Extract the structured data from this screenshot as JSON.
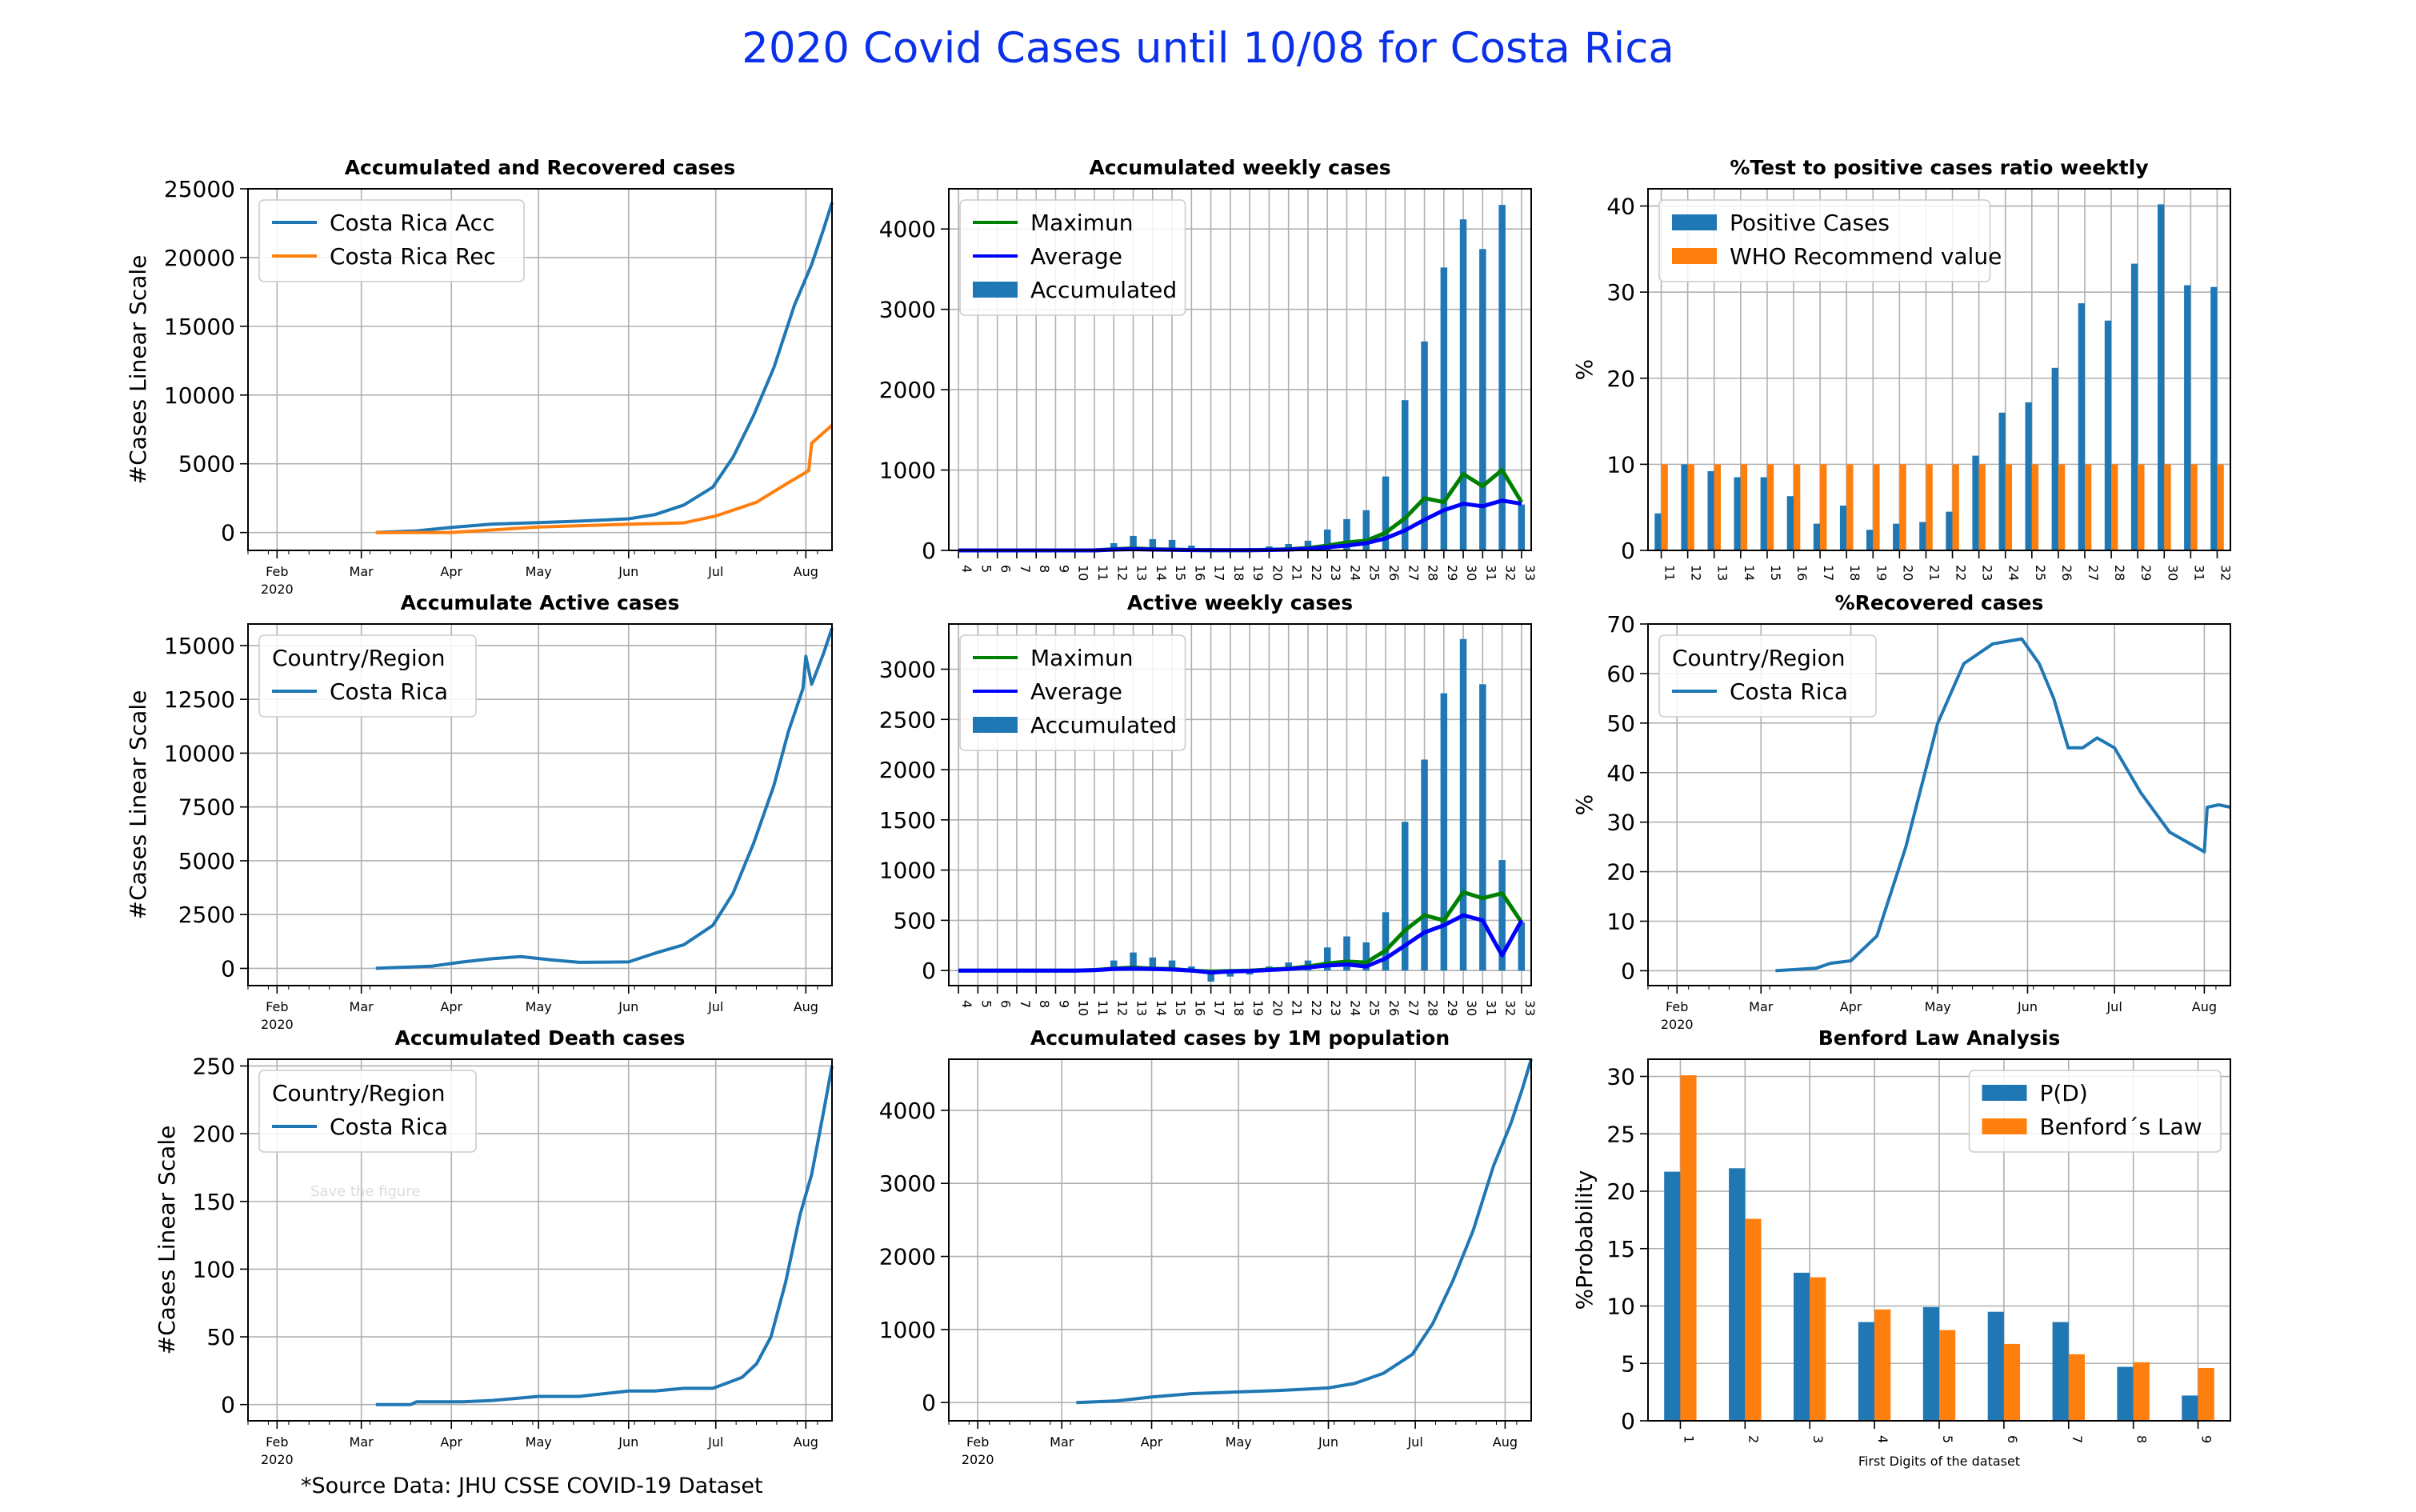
{
  "figure": {
    "title": "2020 Covid  Cases until 10/08 for Costa Rica",
    "source_note": "*Source Data: JHU CSSE COVID-19 Dataset",
    "ghost_text": "Save the figure",
    "colors": {
      "blue": "#1f77b4",
      "orange": "#ff7f0e",
      "green": "#008000",
      "navy": "#0000ff",
      "title": "#0b31e8"
    }
  },
  "chart_data": [
    {
      "id": "acc_rec",
      "type": "line",
      "title": "Accumulated and Recovered cases",
      "ylabel": "#Cases Linear Scale",
      "xlabel": "",
      "xlim": [
        "2020-01-22",
        "2020-08-10"
      ],
      "ylim": [
        -1300,
        25000
      ],
      "yticks": [
        0,
        5000,
        10000,
        15000,
        20000,
        25000
      ],
      "xticks": [
        "Feb\n2020",
        "Mar",
        "Apr",
        "May",
        "Jun",
        "Jul",
        "Aug"
      ],
      "grid": true,
      "legend": "top-left",
      "series": [
        {
          "name": "Costa Rica Acc",
          "color": "#1f77b4",
          "x": [
            "2020-03-06",
            "2020-03-20",
            "2020-04-01",
            "2020-04-15",
            "2020-05-01",
            "2020-05-15",
            "2020-06-01",
            "2020-06-10",
            "2020-06-20",
            "2020-06-30",
            "2020-07-07",
            "2020-07-14",
            "2020-07-21",
            "2020-07-28",
            "2020-08-03",
            "2020-08-07",
            "2020-08-10"
          ],
          "y": [
            1,
            117,
            375,
            612,
            719,
            830,
            1000,
            1300,
            2000,
            3300,
            5500,
            8500,
            12000,
            16500,
            19500,
            22000,
            24000
          ]
        },
        {
          "name": "Costa Rica Rec",
          "color": "#ff7f0e",
          "x": [
            "2020-03-06",
            "2020-04-01",
            "2020-05-01",
            "2020-06-01",
            "2020-06-20",
            "2020-07-01",
            "2020-07-15",
            "2020-07-25",
            "2020-08-02",
            "2020-08-03",
            "2020-08-10"
          ],
          "y": [
            0,
            6,
            400,
            600,
            700,
            1200,
            2200,
            3500,
            4500,
            6500,
            7800
          ]
        }
      ]
    },
    {
      "id": "acc_weekly",
      "type": "bar",
      "title": "Accumulated weekly cases",
      "ylim": [
        0,
        4500
      ],
      "yticks": [
        0,
        1000,
        2000,
        3000,
        4000
      ],
      "categories": [
        "4",
        "5",
        "6",
        "7",
        "8",
        "9",
        "10",
        "11",
        "12",
        "13",
        "14",
        "15",
        "16",
        "17",
        "18",
        "19",
        "20",
        "21",
        "22",
        "23",
        "24",
        "25",
        "26",
        "27",
        "28",
        "29",
        "30",
        "31",
        "32",
        "33"
      ],
      "grid": true,
      "legend": "top-left",
      "series": [
        {
          "name": "Maximun",
          "kind": "line",
          "color": "#008000",
          "values": [
            0,
            0,
            0,
            0,
            0,
            0,
            0,
            0,
            15,
            25,
            15,
            10,
            5,
            2,
            2,
            3,
            8,
            15,
            30,
            60,
            100,
            120,
            220,
            400,
            650,
            600,
            950,
            800,
            1000,
            600
          ]
        },
        {
          "name": "Average",
          "kind": "line",
          "color": "#0000ff",
          "values": [
            0,
            0,
            0,
            0,
            0,
            0,
            0,
            0,
            10,
            15,
            10,
            8,
            4,
            2,
            2,
            3,
            5,
            10,
            20,
            40,
            60,
            90,
            150,
            250,
            380,
            500,
            580,
            550,
            620,
            580
          ]
        },
        {
          "name": "Accumulated",
          "kind": "bar",
          "color": "#1f77b4",
          "values": [
            0,
            0,
            0,
            0,
            0,
            0,
            0,
            5,
            90,
            180,
            140,
            130,
            60,
            30,
            25,
            30,
            50,
            80,
            120,
            260,
            390,
            500,
            920,
            1870,
            2600,
            3520,
            4120,
            3750,
            4300,
            570
          ]
        }
      ]
    },
    {
      "id": "test_ratio",
      "type": "bar",
      "title": "%Test to positive cases ratio weektly",
      "ylabel": "%",
      "ylim": [
        0,
        42
      ],
      "yticks": [
        0,
        10,
        20,
        30,
        40
      ],
      "categories": [
        "11",
        "12",
        "13",
        "14",
        "15",
        "16",
        "17",
        "18",
        "19",
        "20",
        "21",
        "22",
        "23",
        "24",
        "25",
        "26",
        "27",
        "28",
        "29",
        "30",
        "31",
        "32"
      ],
      "grid": true,
      "legend": "top-left",
      "series": [
        {
          "name": "Positive Cases",
          "color": "#1f77b4",
          "values": [
            4.3,
            10,
            9.2,
            8.5,
            8.5,
            6.3,
            3.1,
            5.2,
            2.4,
            3.1,
            3.3,
            4.5,
            11,
            16,
            17.2,
            21.2,
            28.7,
            26.7,
            33.3,
            40.2,
            30.8,
            30.6
          ]
        },
        {
          "name": "WHO Recommend value",
          "color": "#ff7f0e",
          "values": [
            10,
            10,
            10,
            10,
            10,
            10,
            10,
            10,
            10,
            10,
            10,
            10,
            10,
            10,
            10,
            10,
            10,
            10,
            10,
            10,
            10,
            10
          ]
        }
      ]
    },
    {
      "id": "active",
      "type": "line",
      "title": "Accumulate Active cases",
      "ylabel": "#Cases Linear Scale",
      "xlim": [
        "2020-01-22",
        "2020-08-10"
      ],
      "ylim": [
        -800,
        16000
      ],
      "yticks": [
        0,
        2500,
        5000,
        7500,
        10000,
        12500,
        15000
      ],
      "xticks": [
        "Feb\n2020",
        "Mar",
        "Apr",
        "May",
        "Jun",
        "Jul",
        "Aug"
      ],
      "grid": true,
      "legend": "top-left",
      "legend_title": "Country/Region",
      "series": [
        {
          "name": "Costa Rica",
          "color": "#1f77b4",
          "x": [
            "2020-03-06",
            "2020-03-25",
            "2020-04-05",
            "2020-04-15",
            "2020-04-25",
            "2020-05-05",
            "2020-05-15",
            "2020-06-01",
            "2020-06-10",
            "2020-06-20",
            "2020-06-30",
            "2020-07-07",
            "2020-07-14",
            "2020-07-21",
            "2020-07-26",
            "2020-07-31",
            "2020-08-01",
            "2020-08-03",
            "2020-08-07",
            "2020-08-10"
          ],
          "y": [
            1,
            100,
            300,
            450,
            550,
            400,
            280,
            300,
            700,
            1100,
            2000,
            3500,
            5800,
            8500,
            11000,
            13000,
            14500,
            13200,
            14600,
            15800
          ]
        }
      ]
    },
    {
      "id": "active_weekly",
      "type": "bar",
      "title": "Active weekly cases",
      "ylim": [
        -150,
        3450
      ],
      "yticks": [
        0,
        500,
        1000,
        1500,
        2000,
        2500,
        3000
      ],
      "categories": [
        "4",
        "5",
        "6",
        "7",
        "8",
        "9",
        "10",
        "11",
        "12",
        "13",
        "14",
        "15",
        "16",
        "17",
        "18",
        "19",
        "20",
        "21",
        "22",
        "23",
        "24",
        "25",
        "26",
        "27",
        "28",
        "29",
        "30",
        "31",
        "32",
        "33"
      ],
      "grid": true,
      "legend": "top-left",
      "series": [
        {
          "name": "Maximun",
          "kind": "line",
          "color": "#008000",
          "values": [
            0,
            0,
            0,
            0,
            0,
            0,
            0,
            5,
            20,
            30,
            20,
            15,
            0,
            -10,
            -5,
            0,
            10,
            20,
            40,
            70,
            90,
            80,
            200,
            400,
            550,
            500,
            780,
            720,
            770,
            480
          ]
        },
        {
          "name": "Average",
          "kind": "line",
          "color": "#0000ff",
          "values": [
            0,
            0,
            0,
            0,
            0,
            0,
            0,
            3,
            15,
            20,
            15,
            10,
            0,
            -20,
            -10,
            -5,
            5,
            15,
            30,
            50,
            60,
            40,
            120,
            250,
            380,
            450,
            550,
            500,
            150,
            500
          ]
        },
        {
          "name": "Accumulated",
          "kind": "bar",
          "color": "#1f77b4",
          "values": [
            0,
            0,
            0,
            0,
            0,
            0,
            0,
            5,
            100,
            180,
            130,
            100,
            40,
            -110,
            -60,
            -40,
            40,
            80,
            100,
            230,
            340,
            280,
            580,
            1480,
            2100,
            2760,
            3300,
            2850,
            1100,
            480
          ]
        }
      ]
    },
    {
      "id": "recovered",
      "type": "line",
      "title": "%Recovered cases",
      "ylabel": "%",
      "xlim": [
        "2020-01-22",
        "2020-08-10"
      ],
      "ylim": [
        -3,
        70
      ],
      "yticks": [
        0,
        10,
        20,
        30,
        40,
        50,
        60,
        70
      ],
      "xticks": [
        "Feb\n2020",
        "Mar",
        "Apr",
        "May",
        "Jun",
        "Jul",
        "Aug"
      ],
      "grid": true,
      "legend": "top-left",
      "legend_title": "Country/Region",
      "series": [
        {
          "name": "Costa Rica",
          "color": "#1f77b4",
          "x": [
            "2020-03-06",
            "2020-03-20",
            "2020-03-25",
            "2020-04-01",
            "2020-04-10",
            "2020-04-20",
            "2020-05-01",
            "2020-05-10",
            "2020-05-20",
            "2020-05-30",
            "2020-06-05",
            "2020-06-10",
            "2020-06-15",
            "2020-06-20",
            "2020-06-25",
            "2020-07-01",
            "2020-07-10",
            "2020-07-20",
            "2020-08-01",
            "2020-08-02",
            "2020-08-06",
            "2020-08-10"
          ],
          "y": [
            0,
            0.5,
            1.5,
            2,
            7,
            25,
            50,
            62,
            66,
            67,
            62,
            55,
            45,
            45,
            47,
            45,
            36,
            28,
            24,
            33,
            33.5,
            33
          ]
        }
      ]
    },
    {
      "id": "deaths",
      "type": "line",
      "title": "Accumulated Death cases",
      "ylabel": "#Cases Linear Scale",
      "xlim": [
        "2020-01-22",
        "2020-08-10"
      ],
      "ylim": [
        -12,
        255
      ],
      "yticks": [
        0,
        50,
        100,
        150,
        200,
        250
      ],
      "xticks": [
        "Feb\n2020",
        "Mar",
        "Apr",
        "May",
        "Jun",
        "Jul",
        "Aug"
      ],
      "grid": true,
      "legend": "top-left",
      "legend_title": "Country/Region",
      "series": [
        {
          "name": "Costa Rica",
          "color": "#1f77b4",
          "x": [
            "2020-03-06",
            "2020-03-18",
            "2020-03-20",
            "2020-04-05",
            "2020-04-15",
            "2020-05-01",
            "2020-05-15",
            "2020-06-01",
            "2020-06-10",
            "2020-06-20",
            "2020-06-30",
            "2020-07-05",
            "2020-07-10",
            "2020-07-15",
            "2020-07-20",
            "2020-07-25",
            "2020-07-30",
            "2020-08-03",
            "2020-08-07",
            "2020-08-10"
          ],
          "y": [
            0,
            0,
            2,
            2,
            3,
            6,
            6,
            10,
            10,
            12,
            12,
            16,
            20,
            30,
            50,
            90,
            140,
            170,
            215,
            250
          ]
        }
      ]
    },
    {
      "id": "per_million",
      "type": "line",
      "title": "Accumulated cases by 1M population",
      "xlim": [
        "2020-01-22",
        "2020-08-10"
      ],
      "ylim": [
        -250,
        4700
      ],
      "yticks": [
        0,
        1000,
        2000,
        3000,
        4000
      ],
      "xticks": [
        "Feb\n2020",
        "Mar",
        "Apr",
        "May",
        "Jun",
        "Jul",
        "Aug"
      ],
      "grid": true,
      "series": [
        {
          "name": "",
          "color": "#1f77b4",
          "x": [
            "2020-03-06",
            "2020-03-20",
            "2020-04-01",
            "2020-04-15",
            "2020-05-01",
            "2020-05-15",
            "2020-06-01",
            "2020-06-10",
            "2020-06-20",
            "2020-06-30",
            "2020-07-07",
            "2020-07-14",
            "2020-07-21",
            "2020-07-28",
            "2020-08-03",
            "2020-08-07",
            "2020-08-10"
          ],
          "y": [
            0,
            23,
            75,
            122,
            145,
            165,
            200,
            260,
            400,
            660,
            1080,
            1670,
            2360,
            3240,
            3820,
            4300,
            4700
          ]
        }
      ]
    },
    {
      "id": "benford",
      "type": "bar",
      "title": "Benford Law Analysis",
      "ylabel": "%Probability",
      "xlabel": "First Digits of the dataset",
      "ylim": [
        0,
        31.5
      ],
      "yticks": [
        0,
        5,
        10,
        15,
        20,
        25,
        30
      ],
      "categories": [
        "1",
        "2",
        "3",
        "4",
        "5",
        "6",
        "7",
        "8",
        "9"
      ],
      "grid": true,
      "legend": "top-right",
      "series": [
        {
          "name": "P(D)",
          "color": "#1f77b4",
          "values": [
            21.7,
            22.0,
            12.9,
            8.6,
            9.9,
            9.5,
            8.6,
            4.7,
            2.2
          ]
        },
        {
          "name": "Benford´s Law",
          "color": "#ff7f0e",
          "values": [
            30.1,
            17.6,
            12.5,
            9.7,
            7.9,
            6.7,
            5.8,
            5.1,
            4.6
          ]
        }
      ]
    }
  ]
}
